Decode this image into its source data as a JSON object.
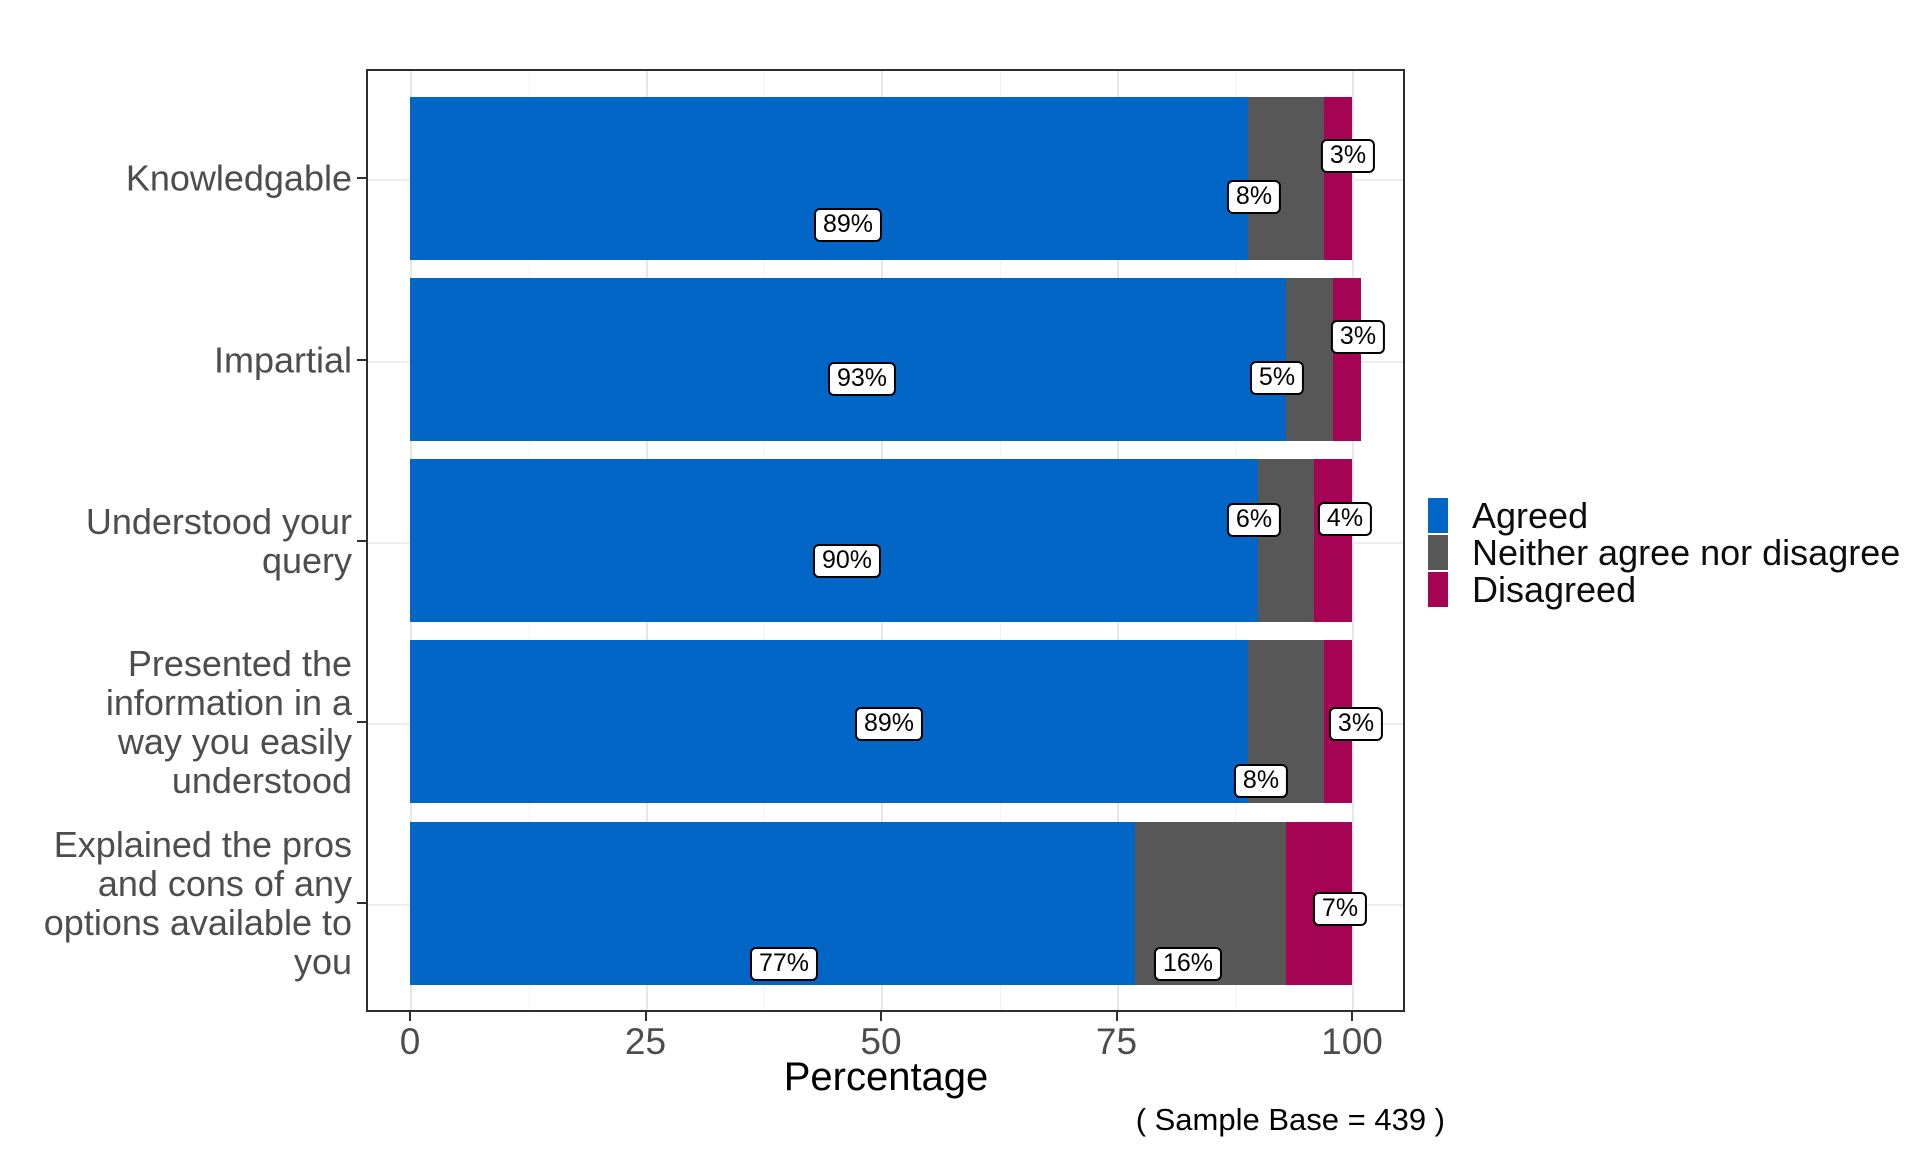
{
  "figure": {
    "background": "#ffffff",
    "panel_border_color": "#2e2e2e"
  },
  "chart_data": {
    "type": "bar",
    "orientation": "horizontal",
    "stacked": true,
    "title": "",
    "xlabel": "Percentage",
    "caption": "( Sample Base =  439 )",
    "categories": [
      "Knowledgable",
      "Impartial",
      "Understood your query",
      "Presented the information in a way you easily understood",
      "Explained the pros and cons of any options available to you"
    ],
    "series": [
      {
        "name": "Agreed",
        "color": "#0266c6",
        "values": [
          89,
          93,
          90,
          89,
          77
        ]
      },
      {
        "name": "Neither agree nor disagree",
        "color": "#575757",
        "values": [
          8,
          5,
          6,
          8,
          16
        ]
      },
      {
        "name": "Disagreed",
        "color": "#a50354",
        "values": [
          3,
          3,
          4,
          3,
          7
        ]
      }
    ],
    "value_label_suffix": "%",
    "x_ticks": [
      0,
      25,
      50,
      75,
      100
    ],
    "x_minor_ticks": [
      12.5,
      37.5,
      62.5,
      87.5
    ],
    "xlim": [
      0,
      100
    ],
    "grid": "major+minor vertical, light gray on white",
    "legend_position": "right",
    "tick_label_color": "#4d4d4d",
    "category_label_color": "#4d4d4d"
  }
}
